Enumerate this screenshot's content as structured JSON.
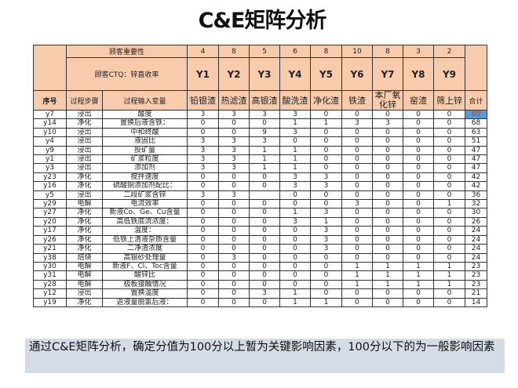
{
  "title": "C&E矩阵分析",
  "header": {
    "importance_label": "顾客重要性",
    "ctq_label": "顾客CTQ：锌直收率",
    "col_index": "序号",
    "col_step": "过程步骤",
    "col_variable": "过程输入变量",
    "col_total": "合计",
    "outputs": [
      {
        "weight": "4",
        "code": "Y1",
        "name": "铅银渣"
      },
      {
        "weight": "8",
        "code": "Y2",
        "name": "热滤渣"
      },
      {
        "weight": "5",
        "code": "Y3",
        "name": "高银渣"
      },
      {
        "weight": "6",
        "code": "Y4",
        "name": "酸洗渣"
      },
      {
        "weight": "8",
        "code": "Y5",
        "name": "净化渣"
      },
      {
        "weight": "10",
        "code": "Y6",
        "name": "铁渣"
      },
      {
        "weight": "8",
        "code": "Y7",
        "name": "本厂氧化锌"
      },
      {
        "weight": "3",
        "code": "Y8",
        "name": "窑渣"
      },
      {
        "weight": "2",
        "code": "Y9",
        "name": "筛上锌"
      }
    ]
  },
  "rows": [
    {
      "id": "y7",
      "step": "浸出",
      "var": "酸度",
      "scores": [
        "3",
        "3",
        "3",
        "3",
        "0",
        "0",
        "0",
        "0",
        "0"
      ],
      "total": "69",
      "highlight": true
    },
    {
      "id": "y14",
      "step": "净化",
      "var": "置换后液含铁：",
      "scores": [
        "0",
        "0",
        "0",
        "1",
        "1",
        "3",
        "3",
        "0",
        "0"
      ],
      "total": "68"
    },
    {
      "id": "y10",
      "step": "浸出",
      "var": "中和终酸",
      "scores": [
        "0",
        "0",
        "9",
        "3",
        "0",
        "0",
        "0",
        "0",
        "0"
      ],
      "total": "63"
    },
    {
      "id": "y4",
      "step": "浸出",
      "var": "液固比",
      "scores": [
        "3",
        "3",
        "3",
        "0",
        "0",
        "0",
        "0",
        "0",
        "0"
      ],
      "total": "51"
    },
    {
      "id": "y9",
      "step": "浸出",
      "var": "投矿量",
      "scores": [
        "3",
        "3",
        "1",
        "1",
        "0",
        "0",
        "0",
        "0",
        "0"
      ],
      "total": "47"
    },
    {
      "id": "y1",
      "step": "浸出",
      "var": "矿浆粒度",
      "scores": [
        "3",
        "3",
        "1",
        "1",
        "0",
        "0",
        "0",
        "0",
        "0"
      ],
      "total": "47"
    },
    {
      "id": "y3",
      "step": "浸出",
      "var": "添加剂",
      "scores": [
        "3",
        "3",
        "1",
        "1",
        "0",
        "0",
        "0",
        "0",
        "0"
      ],
      "total": "47"
    },
    {
      "id": "y23",
      "step": "净化",
      "var": "搅拌速度",
      "scores": [
        "0",
        "0",
        "0",
        "3",
        "3",
        "0",
        "0",
        "0",
        "0"
      ],
      "total": "42"
    },
    {
      "id": "y16",
      "step": "净化",
      "var": "硫酸铜添加剂配比：",
      "scores": [
        "0",
        "0",
        "0",
        "3",
        "3",
        "0",
        "0",
        "0",
        "0"
      ],
      "total": "42"
    },
    {
      "id": "y5",
      "step": "浸出",
      "var": "二段矿浆含锌",
      "scores": [
        "3",
        "3",
        "",
        "0",
        "0",
        "0",
        "0",
        "0",
        "0"
      ],
      "total": "36"
    },
    {
      "id": "y29",
      "step": "电解",
      "var": "电流效率",
      "scores": [
        "0",
        "0",
        "0",
        "0",
        "0",
        "3",
        "0",
        "0",
        "1"
      ],
      "total": "32"
    },
    {
      "id": "y27",
      "step": "净化",
      "var": "新液Co、Ge、Cu含量",
      "scores": [
        "0",
        "0",
        "0",
        "1",
        "3",
        "0",
        "0",
        "0",
        "0"
      ],
      "total": "30"
    },
    {
      "id": "y20",
      "step": "净化",
      "var": "高低铁底流浓度：",
      "scores": [
        "0",
        "0",
        "0",
        "3",
        "1",
        "0",
        "0",
        "0",
        "0"
      ],
      "total": "26"
    },
    {
      "id": "y17",
      "step": "净化",
      "var": "温度：",
      "scores": [
        "0",
        "0",
        "0",
        "0",
        "3",
        "0",
        "0",
        "0",
        "0"
      ],
      "total": "24"
    },
    {
      "id": "y26",
      "step": "净化",
      "var": "低铁上清液杂质含量",
      "scores": [
        "0",
        "0",
        "0",
        "0",
        "3",
        "0",
        "0",
        "0",
        "0"
      ],
      "total": "24"
    },
    {
      "id": "y21",
      "step": "净化",
      "var": "二净渣浓度",
      "scores": [
        "0",
        "0",
        "0",
        "0",
        "3",
        "0",
        "0",
        "0",
        "0"
      ],
      "total": "24"
    },
    {
      "id": "y38",
      "step": "焙烧",
      "var": "高银砂处理量",
      "scores": [
        "0",
        "3",
        "0",
        "0",
        "0",
        "0",
        "0",
        "0",
        "0"
      ],
      "total": "24"
    },
    {
      "id": "y30",
      "step": "电解",
      "var": "新液F、Cl、Toc含量",
      "scores": [
        "0",
        "0",
        "0",
        "0",
        "0",
        "1",
        "1",
        "1",
        "1"
      ],
      "total": "23"
    },
    {
      "id": "y31",
      "step": "电解",
      "var": "酸锌比",
      "scores": [
        "0",
        "0",
        "0",
        "0",
        "0",
        "1",
        "1",
        "1",
        "1"
      ],
      "total": "23"
    },
    {
      "id": "y28",
      "step": "电解",
      "var": "极板接触情况",
      "scores": [
        "0",
        "0",
        "0",
        "0",
        "0",
        "1",
        "1",
        "1",
        "1"
      ],
      "total": "23"
    },
    {
      "id": "y12",
      "step": "浸出",
      "var": "置换温度",
      "scores": [
        "0",
        "0",
        "3",
        "1",
        "0",
        "0",
        "0",
        "0",
        "0"
      ],
      "total": "21"
    },
    {
      "id": "y19",
      "step": "净化",
      "var": "返液量脱氯后液：",
      "scores": [
        "0",
        "0",
        "0",
        "1",
        "1",
        "0",
        "0",
        "0",
        "0"
      ],
      "total": "14"
    }
  ],
  "note": "通过C&E矩阵分析，确定分值为100分以上暂为关键影响因素，100分以下的为一般影响因素",
  "colors": {
    "header_fill": "#f8cbad",
    "highlight_fill": "#5b9bd5",
    "note_fill": "#d6dce5"
  }
}
